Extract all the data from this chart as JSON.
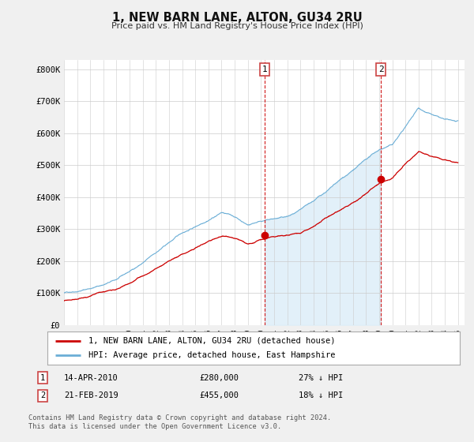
{
  "title": "1, NEW BARN LANE, ALTON, GU34 2RU",
  "subtitle": "Price paid vs. HM Land Registry's House Price Index (HPI)",
  "ylabel_ticks": [
    "£0",
    "£100K",
    "£200K",
    "£300K",
    "£400K",
    "£500K",
    "£600K",
    "£700K",
    "£800K"
  ],
  "ytick_values": [
    0,
    100000,
    200000,
    300000,
    400000,
    500000,
    600000,
    700000,
    800000
  ],
  "ylim": [
    0,
    830000
  ],
  "xlim_start": 1995.0,
  "xlim_end": 2025.5,
  "hpi_color": "#6baed6",
  "shade_color": "#ddeef8",
  "price_color": "#cc0000",
  "marker1_year": 2010.29,
  "marker1_price": 280000,
  "marker2_year": 2019.13,
  "marker2_price": 455000,
  "legend_label1": "1, NEW BARN LANE, ALTON, GU34 2RU (detached house)",
  "legend_label2": "HPI: Average price, detached house, East Hampshire",
  "note1_label": "1",
  "note1_date": "14-APR-2010",
  "note1_price": "£280,000",
  "note1_hpi": "27% ↓ HPI",
  "note2_label": "2",
  "note2_date": "21-FEB-2019",
  "note2_price": "£455,000",
  "note2_hpi": "18% ↓ HPI",
  "footer": "Contains HM Land Registry data © Crown copyright and database right 2024.\nThis data is licensed under the Open Government Licence v3.0.",
  "bg_color": "#f0f0f0",
  "plot_bg_color": "#ffffff",
  "dashed_vline_color": "#cc0000"
}
